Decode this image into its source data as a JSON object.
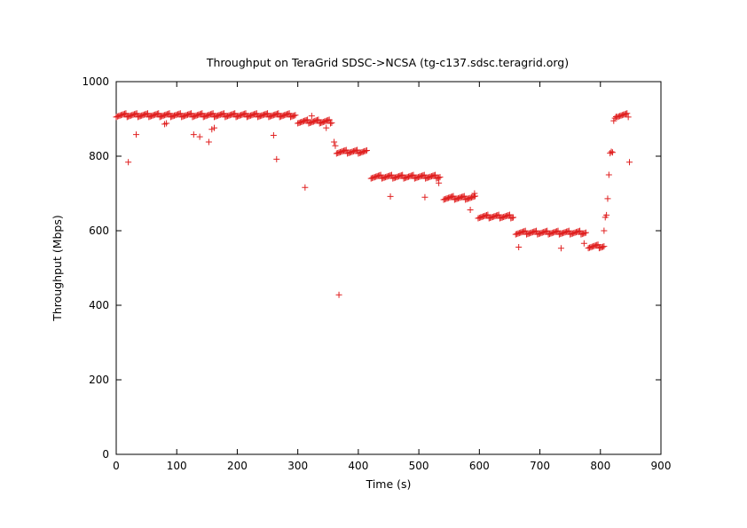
{
  "chart_data": {
    "type": "scatter",
    "title": "Throughput on TeraGrid SDSC->NCSA (tg-c137.sdsc.teragrid.org)",
    "xlabel": "Time (s)",
    "ylabel": "Throughput (Mbps)",
    "xlim": [
      0,
      900
    ],
    "ylim": [
      0,
      1000
    ],
    "xticks": [
      0,
      100,
      200,
      300,
      400,
      500,
      600,
      700,
      800,
      900
    ],
    "yticks": [
      0,
      200,
      400,
      600,
      800,
      1000
    ],
    "marker": "+",
    "color": "#e02020",
    "grid": false,
    "legend": "none",
    "segments": [
      {
        "x_start": 0,
        "x_end": 297,
        "step": 2,
        "y": 910
      },
      {
        "x_start": 300,
        "x_end": 356,
        "step": 2,
        "y": 893
      },
      {
        "x_start": 364,
        "x_end": 414,
        "step": 2,
        "y": 812
      },
      {
        "x_start": 421,
        "x_end": 536,
        "step": 2,
        "y": 745
      },
      {
        "x_start": 541,
        "x_end": 594,
        "step": 2,
        "y": 688
      },
      {
        "x_start": 598,
        "x_end": 656,
        "step": 2,
        "y": 638
      },
      {
        "x_start": 660,
        "x_end": 777,
        "step": 2,
        "y": 595
      },
      {
        "x_start": 780,
        "x_end": 806,
        "step": 2,
        "y": 558
      },
      {
        "x_start": 828,
        "x_end": 846,
        "step": 2,
        "y": 910
      }
    ],
    "points": [
      {
        "x": 20,
        "y": 784
      },
      {
        "x": 33,
        "y": 858
      },
      {
        "x": 80,
        "y": 886
      },
      {
        "x": 83,
        "y": 888
      },
      {
        "x": 128,
        "y": 858
      },
      {
        "x": 138,
        "y": 852
      },
      {
        "x": 153,
        "y": 838
      },
      {
        "x": 158,
        "y": 872
      },
      {
        "x": 162,
        "y": 876
      },
      {
        "x": 260,
        "y": 856
      },
      {
        "x": 265,
        "y": 792
      },
      {
        "x": 312,
        "y": 716
      },
      {
        "x": 323,
        "y": 908
      },
      {
        "x": 347,
        "y": 876
      },
      {
        "x": 360,
        "y": 838
      },
      {
        "x": 362,
        "y": 828
      },
      {
        "x": 368,
        "y": 428
      },
      {
        "x": 453,
        "y": 692
      },
      {
        "x": 510,
        "y": 690
      },
      {
        "x": 533,
        "y": 728
      },
      {
        "x": 585,
        "y": 656
      },
      {
        "x": 592,
        "y": 700
      },
      {
        "x": 665,
        "y": 556
      },
      {
        "x": 735,
        "y": 553
      },
      {
        "x": 773,
        "y": 566
      },
      {
        "x": 806,
        "y": 600
      },
      {
        "x": 808,
        "y": 636
      },
      {
        "x": 810,
        "y": 642
      },
      {
        "x": 812,
        "y": 686
      },
      {
        "x": 814,
        "y": 750
      },
      {
        "x": 816,
        "y": 808
      },
      {
        "x": 818,
        "y": 812
      },
      {
        "x": 820,
        "y": 810
      },
      {
        "x": 822,
        "y": 895
      },
      {
        "x": 824,
        "y": 902
      },
      {
        "x": 826,
        "y": 906
      },
      {
        "x": 848,
        "y": 784
      }
    ]
  }
}
